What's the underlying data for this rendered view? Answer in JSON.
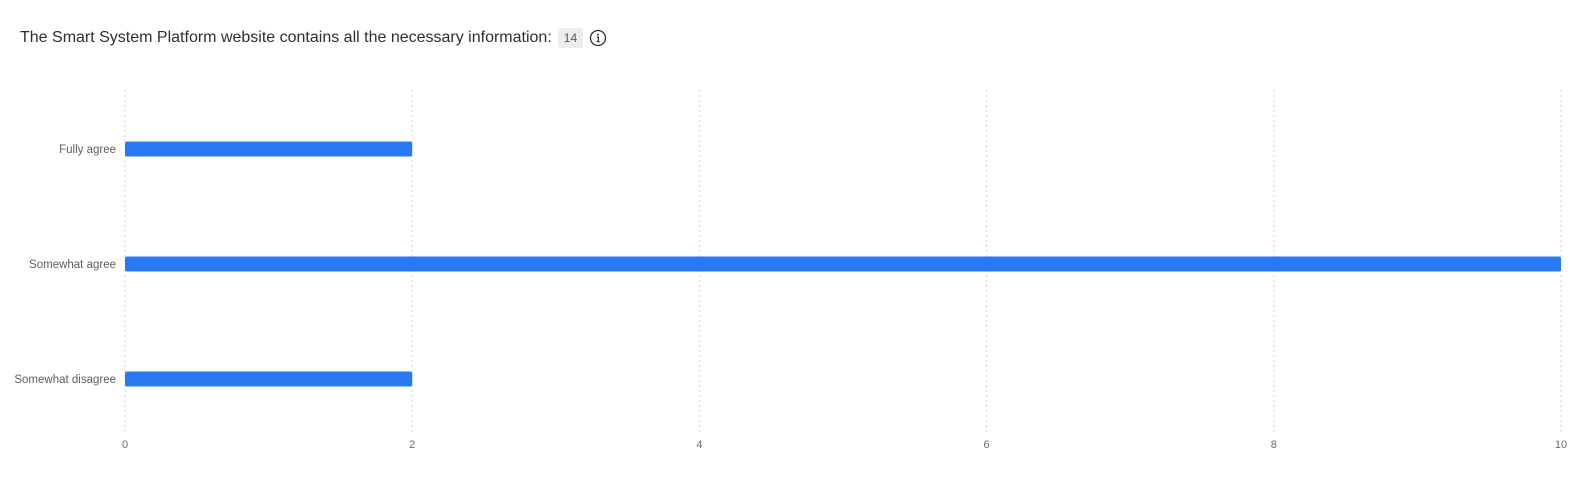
{
  "header": {
    "title": "The Smart System Platform website contains all the necessary information:",
    "count": "14",
    "info_icon": "info-circle-icon"
  },
  "chart_data": {
    "type": "bar",
    "orientation": "horizontal",
    "categories": [
      "Fully agree",
      "Somewhat agree",
      "Somewhat disagree"
    ],
    "values": [
      2,
      10,
      2
    ],
    "xlim": [
      0,
      10
    ],
    "xticks": [
      0,
      2,
      4,
      6,
      8,
      10
    ],
    "grid": true,
    "bar_color": "#2979f2",
    "grid_color": "#d4d4d4"
  }
}
